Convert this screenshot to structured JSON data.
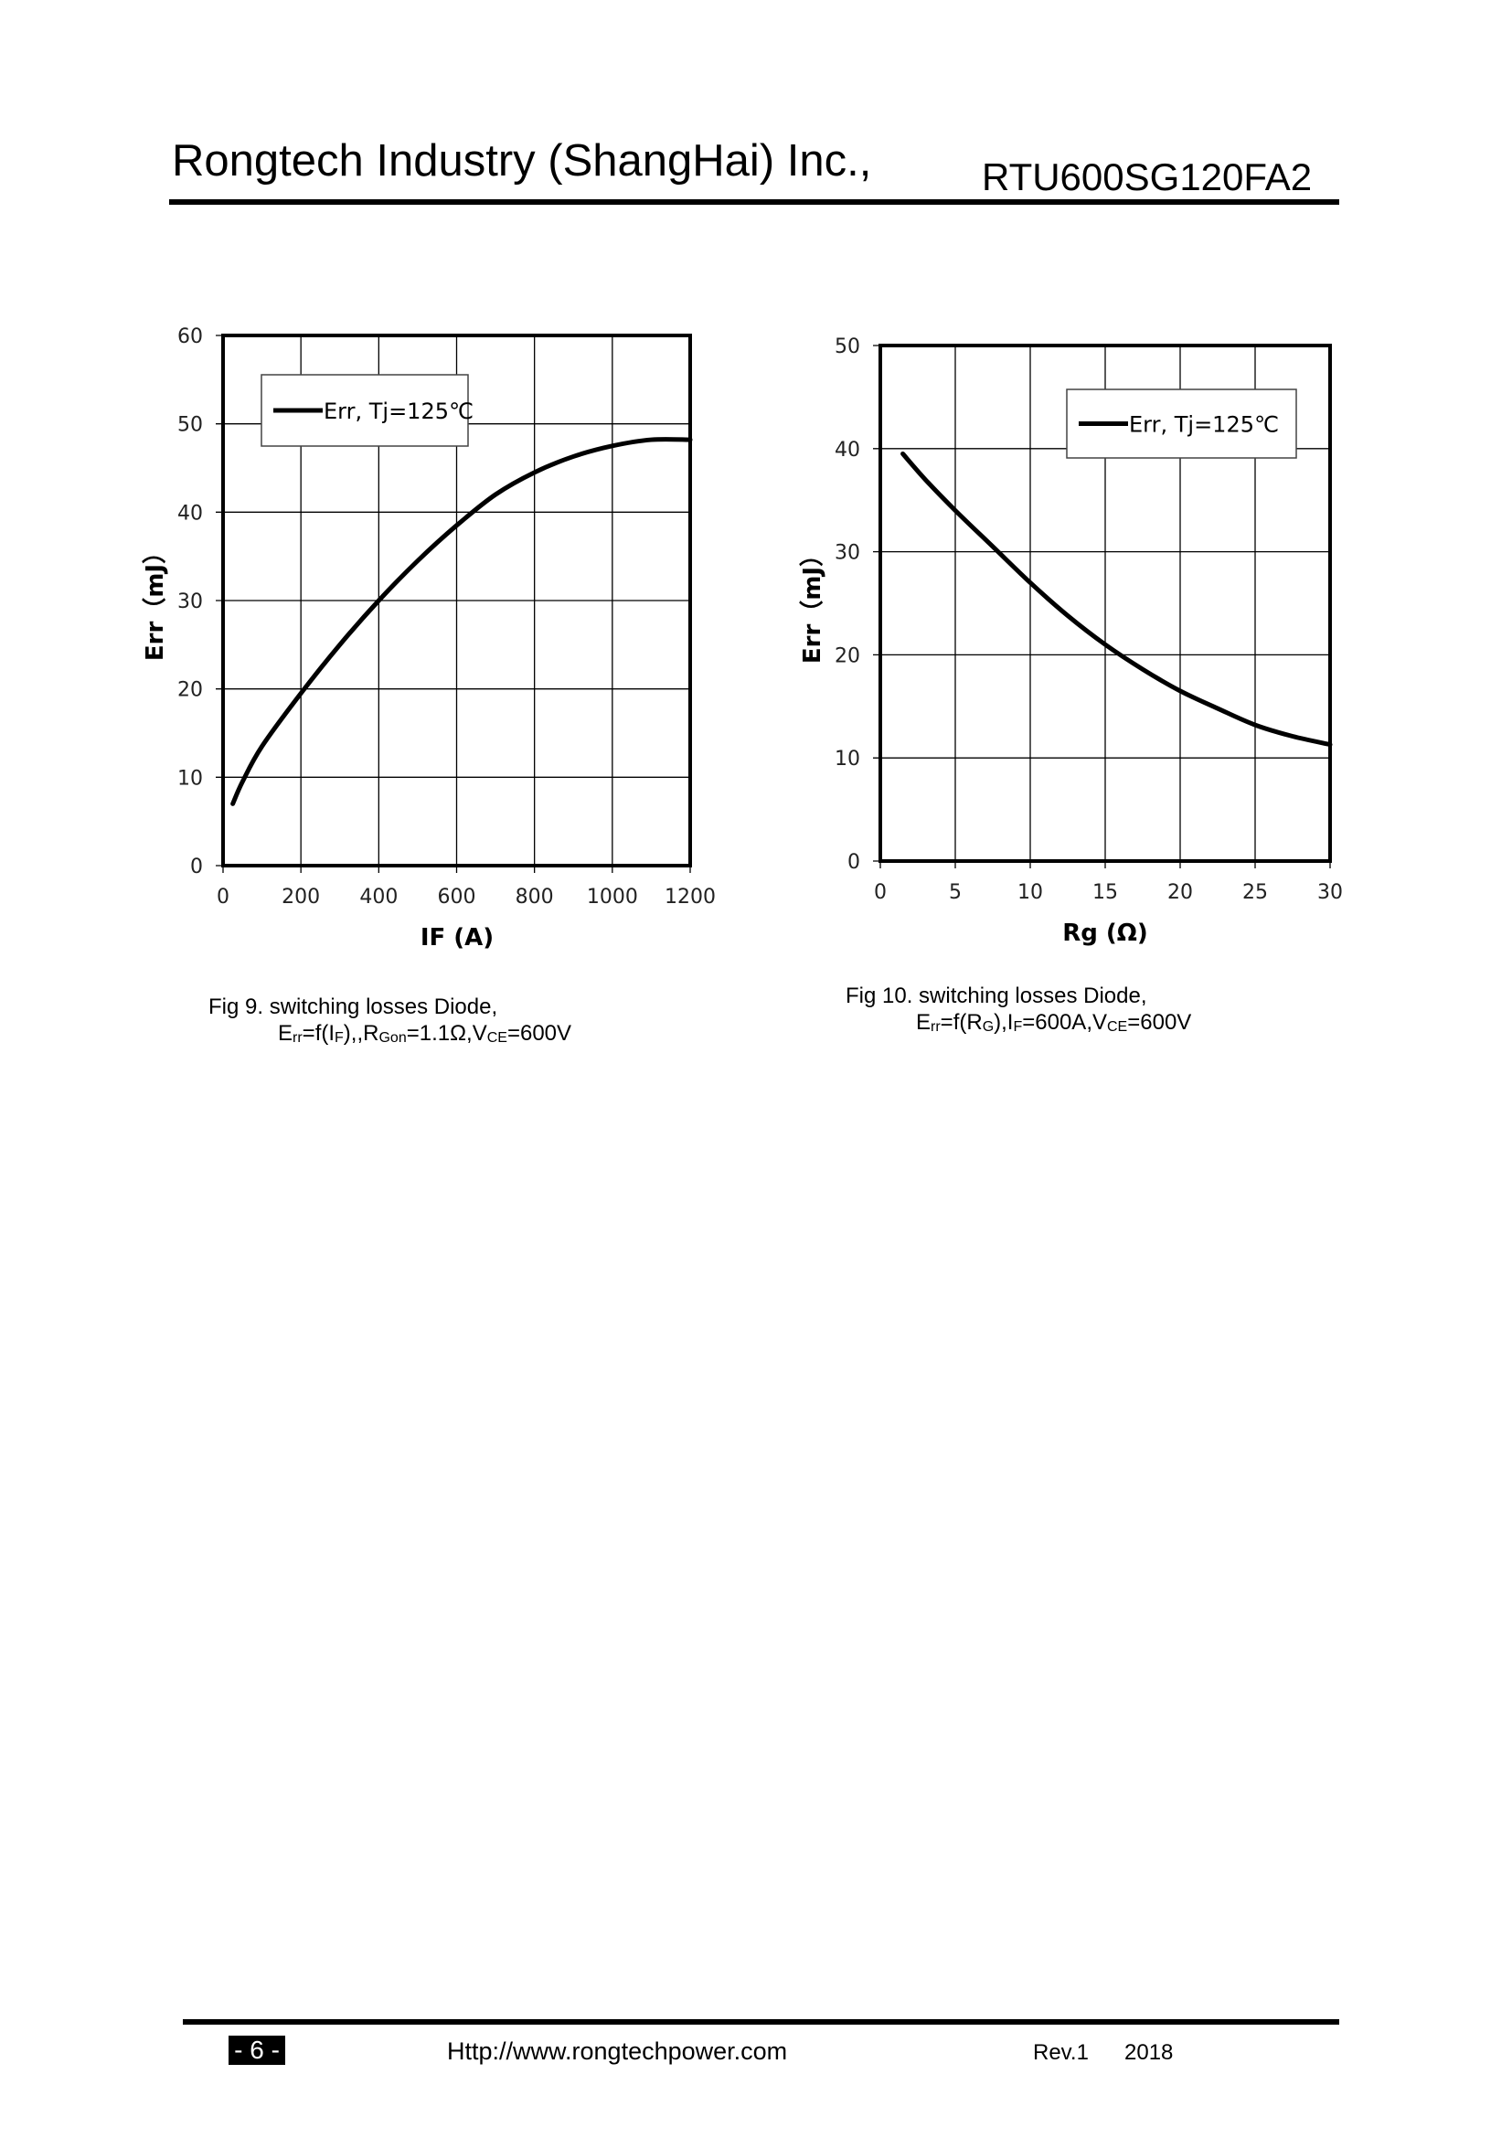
{
  "header": {
    "company": "Rongtech Industry (ShangHai) Inc.,",
    "part_number": "RTU600SG120FA2"
  },
  "footer": {
    "page": "- 6 -",
    "url": "Http://www.rongtechpower.com",
    "revision": "Rev.1",
    "year": "2018"
  },
  "captions": {
    "fig9": {
      "line1": "Fig 9. switching losses Diode,",
      "line2": "Err=f(IF),,RGon=1.1Ω,VCE=600V"
    },
    "fig10": {
      "line1": "Fig 10. switching losses Diode,",
      "line2": "Err=f(RG),IF=600A,VCE=600V"
    }
  },
  "chart_data": [
    {
      "type": "line",
      "xlabel": "IF (A)",
      "ylabel": "Err（mJ）",
      "xlim": [
        0,
        1200
      ],
      "ylim": [
        0,
        60
      ],
      "xticks": [
        0,
        200,
        400,
        600,
        800,
        1000,
        1200
      ],
      "yticks": [
        0,
        10,
        20,
        30,
        40,
        50,
        60
      ],
      "grid": true,
      "legend": "top-left",
      "series": [
        {
          "name": "Err, Tj=125℃",
          "color": "#000000",
          "x": [
            25,
            50,
            100,
            200,
            300,
            400,
            500,
            600,
            700,
            800,
            900,
            1000,
            1100,
            1200
          ],
          "y": [
            7,
            9.5,
            13.5,
            19.5,
            25,
            30,
            34.5,
            38.5,
            42,
            44.5,
            46.3,
            47.5,
            48.2,
            48.2
          ]
        }
      ]
    },
    {
      "type": "line",
      "xlabel": "Rg (Ω)",
      "ylabel": "Err（mJ）",
      "xlim": [
        0,
        30
      ],
      "ylim": [
        0,
        50
      ],
      "xticks": [
        0,
        5,
        10,
        15,
        20,
        25,
        30
      ],
      "yticks": [
        0,
        10,
        20,
        30,
        40,
        50
      ],
      "grid": true,
      "legend": "top-right",
      "series": [
        {
          "name": "Err, Tj=125℃",
          "color": "#000000",
          "x": [
            1.5,
            3,
            5,
            7.5,
            10,
            12.5,
            15,
            17.5,
            20,
            22.5,
            25,
            27.5,
            30
          ],
          "y": [
            39.5,
            37,
            34,
            30.5,
            27,
            23.8,
            21,
            18.6,
            16.5,
            14.8,
            13.2,
            12.1,
            11.3
          ]
        }
      ]
    }
  ]
}
